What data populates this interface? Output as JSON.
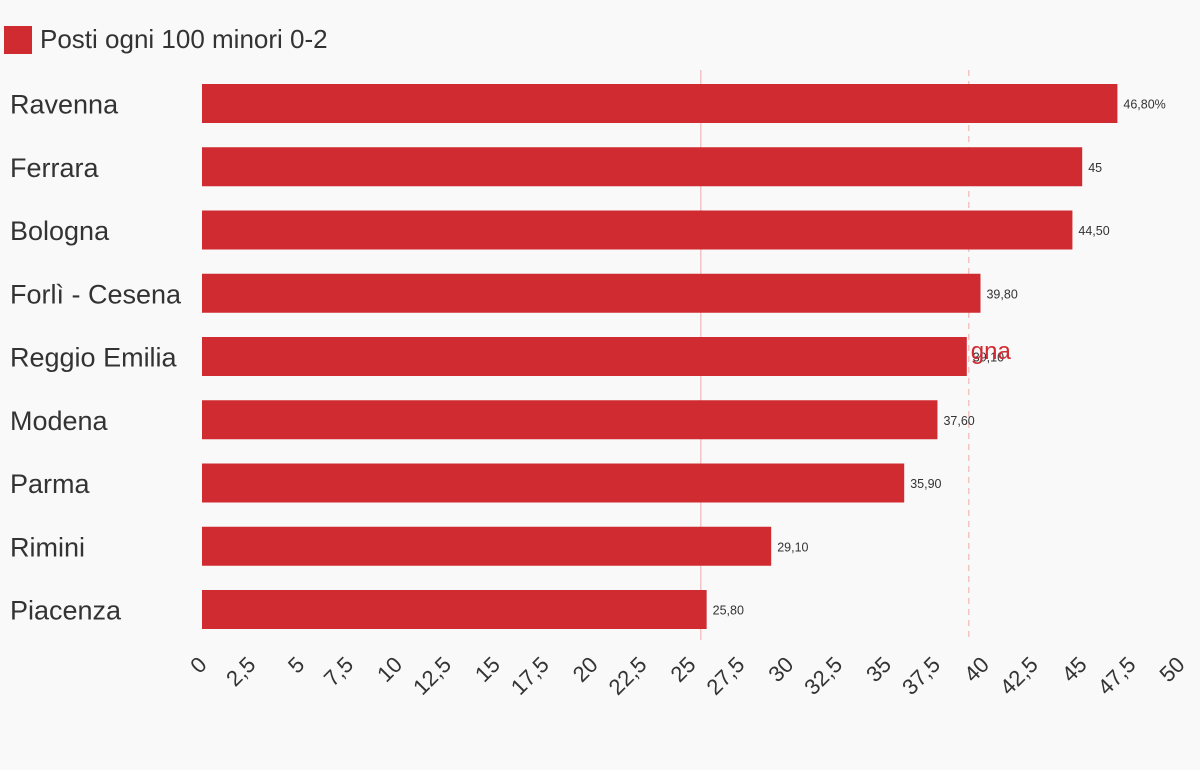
{
  "legend": {
    "label": "Posti ogni 100 minori 0-2",
    "color": "#cf2b31"
  },
  "chart_data": {
    "type": "bar",
    "orientation": "horizontal",
    "categories": [
      "Ravenna",
      "Ferrara",
      "Bologna",
      "Forlì - Cesena",
      "Reggio Emilia",
      "Modena",
      "Parma",
      "Rimini",
      "Piacenza"
    ],
    "series": [
      {
        "name": "Posti ogni 100 minori 0-2",
        "color": "#cf2b31",
        "values": [
          46.8,
          45,
          44.5,
          39.8,
          39.1,
          37.6,
          35.9,
          29.1,
          25.8
        ],
        "value_labels": [
          "46,80%",
          "45",
          "44,50",
          "39,80",
          "39,10",
          "37,60",
          "35,90",
          "29,10",
          "25,80"
        ]
      }
    ],
    "xlim": [
      0,
      50
    ],
    "x_ticks": [
      0,
      2.5,
      5,
      7.5,
      10,
      12.5,
      15,
      17.5,
      20,
      22.5,
      25,
      27.5,
      30,
      32.5,
      35,
      37.5,
      40,
      42.5,
      45,
      47.5,
      50
    ],
    "x_tick_labels": [
      "0",
      "2,5",
      "5",
      "7,5",
      "10",
      "12,5",
      "15",
      "17,5",
      "20",
      "22,5",
      "25",
      "27,5",
      "30",
      "32,5",
      "35",
      "37,5",
      "40",
      "42,5",
      "45",
      "47,5",
      "50"
    ],
    "reference_lines": [
      {
        "value": 25.5,
        "style": "solid",
        "color": "#f2c4c4",
        "label": ""
      },
      {
        "value": 39.2,
        "style": "dashed",
        "color": "#f2c4c4",
        "label": "gna",
        "label_color": "#cf2b31"
      }
    ],
    "grid": false,
    "legend_position": "top-left"
  }
}
